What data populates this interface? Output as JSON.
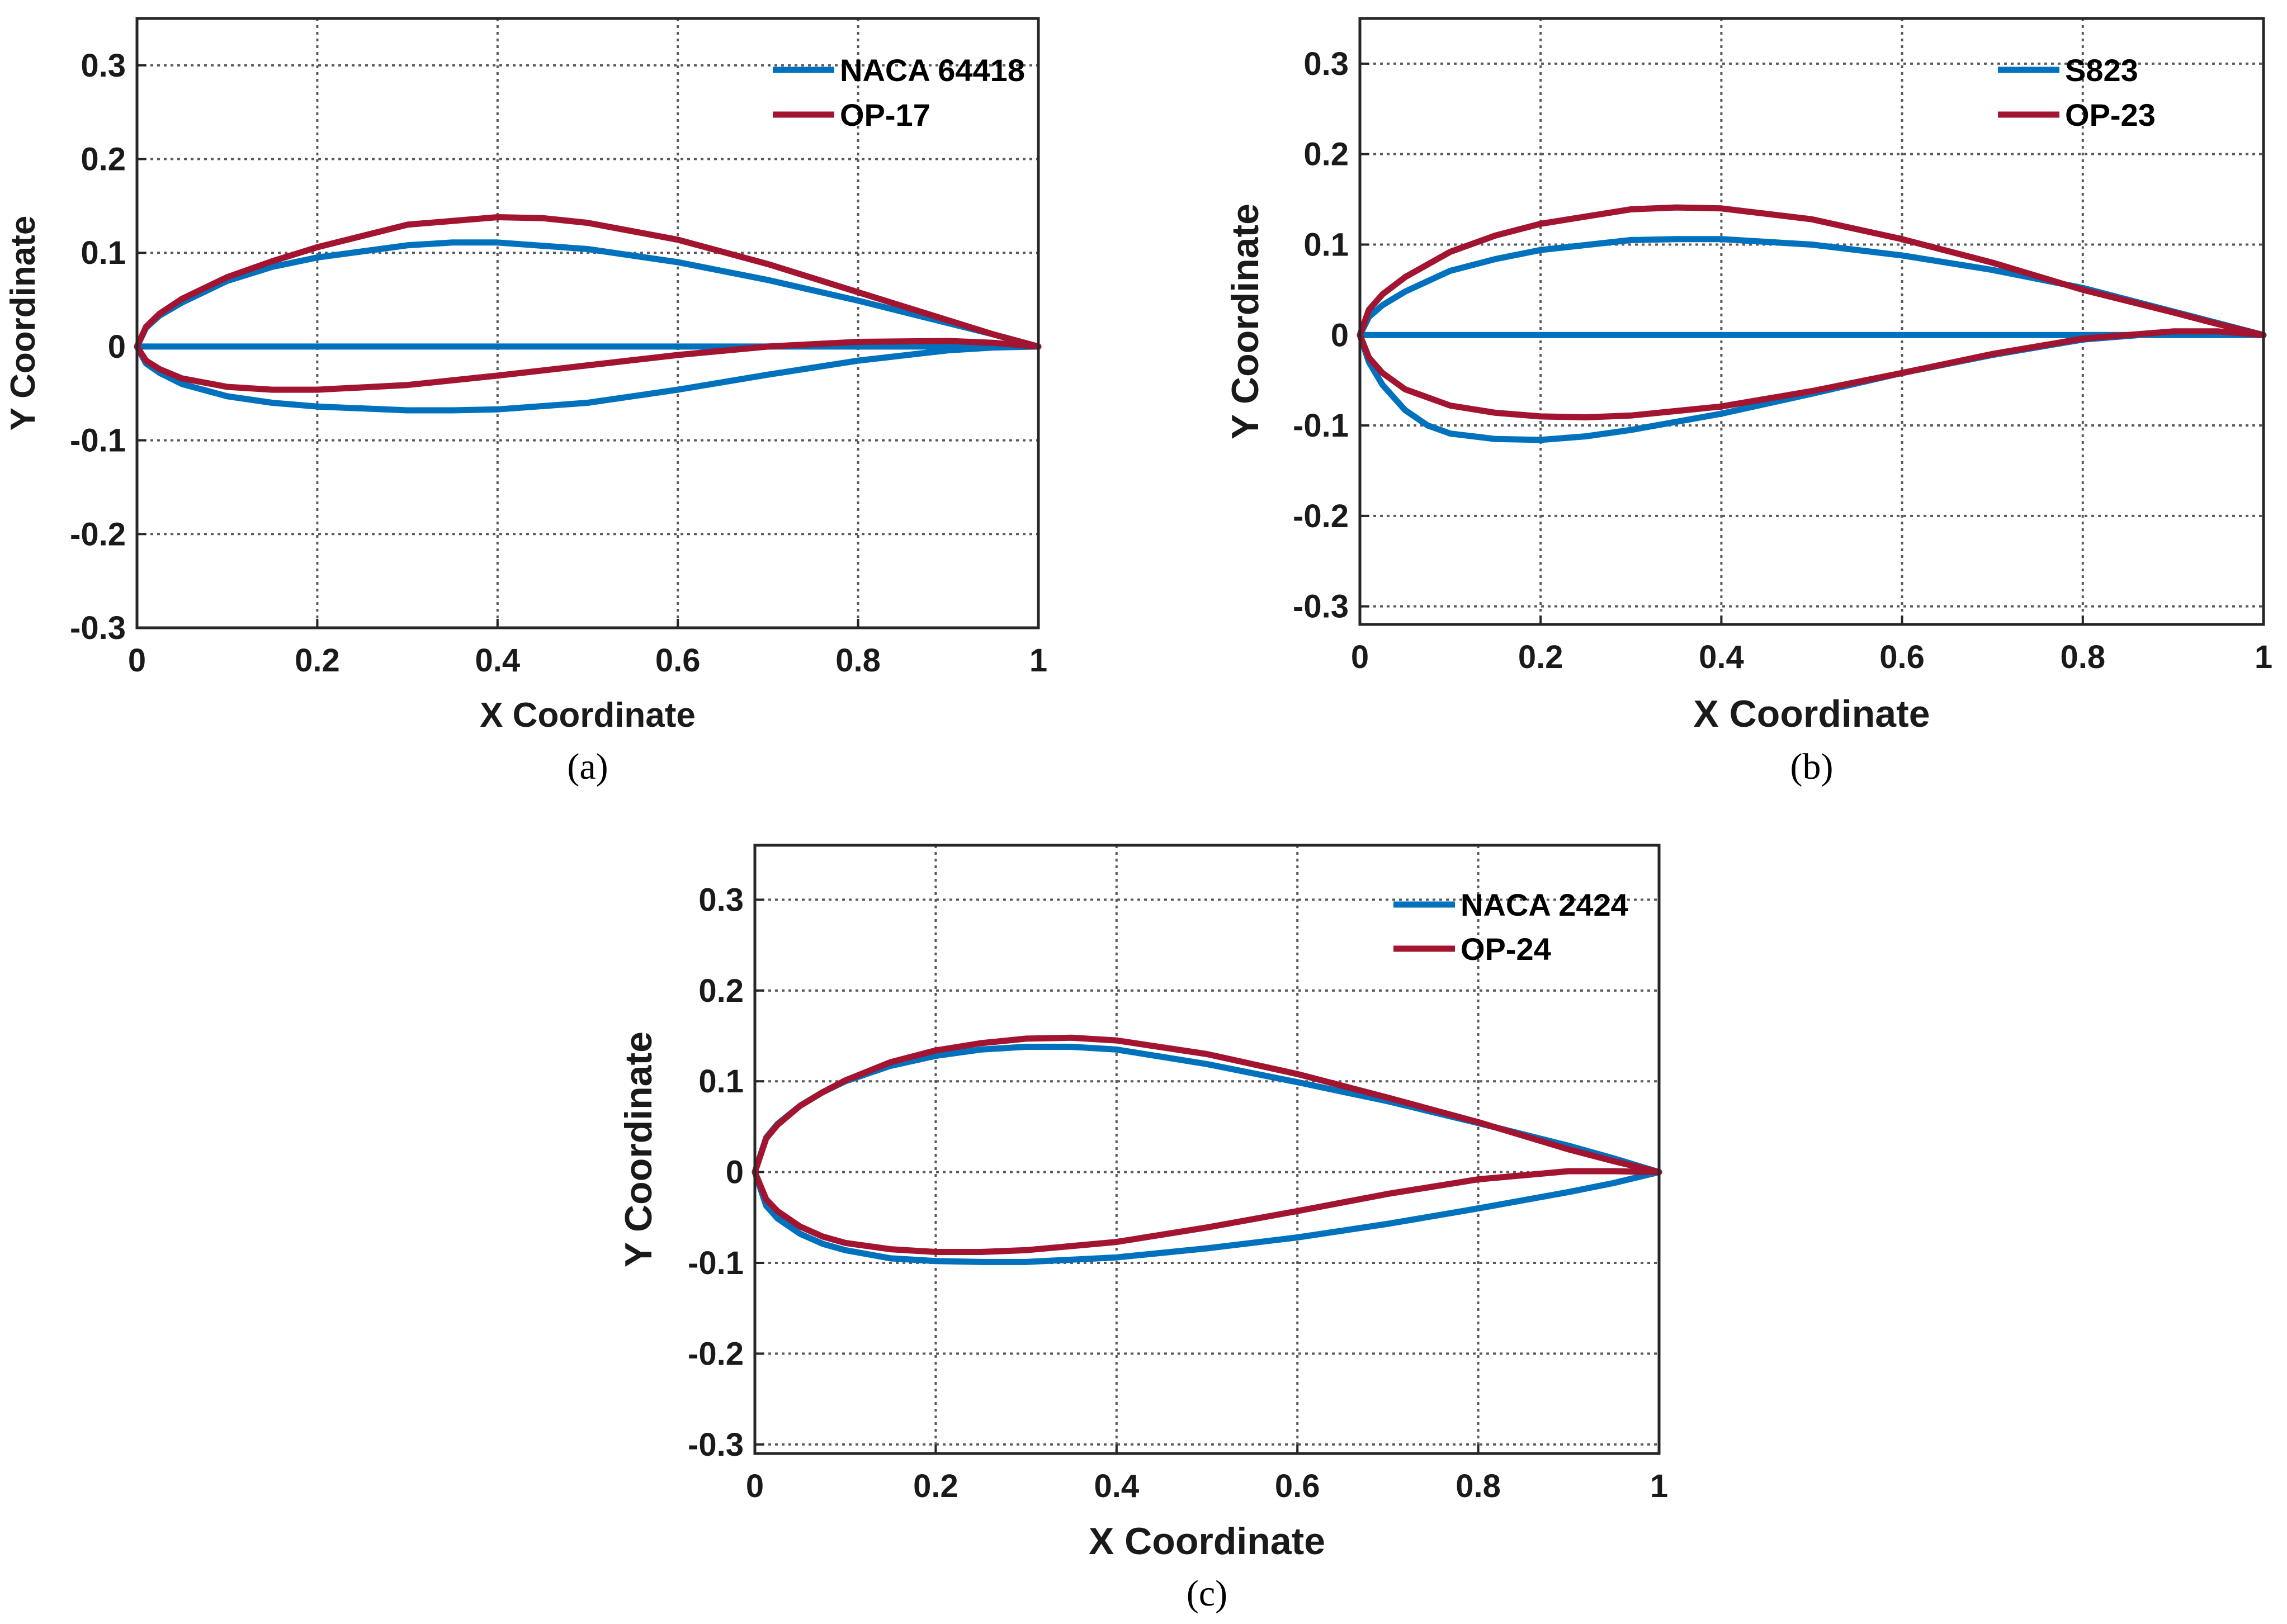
{
  "chart_data": [
    {
      "type": "line",
      "caption": "(a)",
      "xlabel": "X Coordinate",
      "ylabel": "Y Coordinate",
      "xlim": [
        0,
        1
      ],
      "ylim": [
        -0.3,
        0.35
      ],
      "xticks": [
        0,
        0.2,
        0.4,
        0.6,
        0.8,
        1
      ],
      "xtick_labels": [
        "0",
        "0.2",
        "0.4",
        "0.6",
        "0.8",
        "1"
      ],
      "yticks": [
        -0.3,
        -0.2,
        -0.1,
        0,
        0.1,
        0.2,
        0.3
      ],
      "ytick_labels": [
        "-0.3",
        "-0.2",
        "-0.1",
        "0",
        "0.1",
        "0.2",
        "0.3"
      ],
      "grid": true,
      "legend_position": "top-right",
      "series": [
        {
          "name": "NACA 64418",
          "color": "#0072BD",
          "x": [
            1.0,
            0.95,
            0.9,
            0.8,
            0.7,
            0.6,
            0.5,
            0.4,
            0.35,
            0.3,
            0.2,
            0.15,
            0.1,
            0.05,
            0.025,
            0.01,
            0.0,
            0.01,
            0.025,
            0.05,
            0.1,
            0.15,
            0.2,
            0.3,
            0.35,
            0.4,
            0.5,
            0.6,
            0.7,
            0.8,
            0.9,
            0.95,
            1.0,
            null,
            0.0,
            1.0
          ],
          "y": [
            0.0,
            0.013,
            0.025,
            0.049,
            0.071,
            0.09,
            0.104,
            0.111,
            0.111,
            0.108,
            0.095,
            0.085,
            0.07,
            0.047,
            0.033,
            0.02,
            0.0,
            -0.018,
            -0.028,
            -0.04,
            -0.053,
            -0.06,
            -0.064,
            -0.068,
            -0.068,
            -0.067,
            -0.06,
            -0.046,
            -0.03,
            -0.015,
            -0.004,
            -0.001,
            0.0,
            null,
            0.0,
            0.0
          ]
        },
        {
          "name": "OP-17",
          "color": "#A2142F",
          "x": [
            1.0,
            0.95,
            0.9,
            0.8,
            0.7,
            0.6,
            0.5,
            0.45,
            0.4,
            0.3,
            0.2,
            0.15,
            0.1,
            0.05,
            0.025,
            0.01,
            0.0,
            0.01,
            0.025,
            0.05,
            0.1,
            0.15,
            0.2,
            0.3,
            0.4,
            0.5,
            0.6,
            0.7,
            0.8,
            0.9,
            0.95,
            1.0
          ],
          "y": [
            0.0,
            0.013,
            0.028,
            0.058,
            0.088,
            0.114,
            0.132,
            0.137,
            0.138,
            0.13,
            0.106,
            0.091,
            0.074,
            0.051,
            0.035,
            0.021,
            0.0,
            -0.015,
            -0.024,
            -0.034,
            -0.043,
            -0.046,
            -0.046,
            -0.041,
            -0.031,
            -0.02,
            -0.009,
            0.0,
            0.005,
            0.006,
            0.004,
            0.0
          ]
        }
      ]
    },
    {
      "type": "line",
      "caption": "(b)",
      "xlabel": "X Coordinate",
      "ylabel": "Y Coordinate",
      "xlim": [
        0,
        1
      ],
      "ylim": [
        -0.32,
        0.35
      ],
      "xticks": [
        0,
        0.2,
        0.4,
        0.6,
        0.8,
        1
      ],
      "xtick_labels": [
        "0",
        "0.2",
        "0.4",
        "0.6",
        "0.8",
        "1"
      ],
      "yticks": [
        -0.3,
        -0.2,
        -0.1,
        0,
        0.1,
        0.2,
        0.3
      ],
      "ytick_labels": [
        "-0.3",
        "-0.2",
        "-0.1",
        "0",
        "0.1",
        "0.2",
        "0.3"
      ],
      "grid": true,
      "legend_position": "top-right",
      "series": [
        {
          "name": "S823",
          "color": "#0072BD",
          "x": [
            1.0,
            0.95,
            0.9,
            0.8,
            0.7,
            0.6,
            0.5,
            0.4,
            0.35,
            0.3,
            0.2,
            0.15,
            0.1,
            0.05,
            0.025,
            0.01,
            0.0,
            0.01,
            0.025,
            0.05,
            0.075,
            0.1,
            0.15,
            0.2,
            0.25,
            0.3,
            0.4,
            0.5,
            0.6,
            0.7,
            0.8,
            0.9,
            0.95,
            1.0,
            null,
            0.0,
            1.0
          ],
          "y": [
            0.0,
            0.013,
            0.026,
            0.052,
            0.072,
            0.088,
            0.1,
            0.106,
            0.106,
            0.105,
            0.094,
            0.084,
            0.071,
            0.048,
            0.033,
            0.02,
            0.0,
            -0.03,
            -0.055,
            -0.083,
            -0.1,
            -0.109,
            -0.115,
            -0.116,
            -0.112,
            -0.105,
            -0.087,
            -0.065,
            -0.042,
            -0.022,
            -0.005,
            0.003,
            0.003,
            0.0,
            null,
            0.0,
            0.0
          ]
        },
        {
          "name": "OP-23",
          "color": "#A2142F",
          "x": [
            1.0,
            0.95,
            0.9,
            0.8,
            0.7,
            0.6,
            0.5,
            0.4,
            0.35,
            0.3,
            0.2,
            0.15,
            0.1,
            0.05,
            0.025,
            0.01,
            0.0,
            0.01,
            0.025,
            0.05,
            0.1,
            0.15,
            0.2,
            0.25,
            0.3,
            0.4,
            0.5,
            0.6,
            0.7,
            0.8,
            0.9,
            0.95,
            1.0
          ],
          "y": [
            0.0,
            0.012,
            0.025,
            0.05,
            0.08,
            0.106,
            0.128,
            0.14,
            0.141,
            0.139,
            0.123,
            0.11,
            0.092,
            0.064,
            0.045,
            0.028,
            0.0,
            -0.025,
            -0.042,
            -0.06,
            -0.078,
            -0.086,
            -0.09,
            -0.091,
            -0.089,
            -0.079,
            -0.062,
            -0.042,
            -0.021,
            -0.004,
            0.004,
            0.004,
            0.0
          ]
        }
      ]
    },
    {
      "type": "line",
      "caption": "(c)",
      "xlabel": "X Coordinate",
      "ylabel": "Y Coordinate",
      "xlim": [
        0,
        1
      ],
      "ylim": [
        -0.31,
        0.36
      ],
      "xticks": [
        0,
        0.2,
        0.4,
        0.6,
        0.8,
        1
      ],
      "xtick_labels": [
        "0",
        "0.2",
        "0.4",
        "0.6",
        "0.8",
        "1"
      ],
      "yticks": [
        -0.3,
        -0.2,
        -0.1,
        0,
        0.1,
        0.2,
        0.3
      ],
      "ytick_labels": [
        "-0.3",
        "-0.2",
        "-0.1",
        "0",
        "0.1",
        "0.2",
        "0.3"
      ],
      "grid": true,
      "legend_position": "top-right",
      "series": [
        {
          "name": "NACA 2424",
          "color": "#0072BD",
          "x": [
            1.0,
            0.95,
            0.9,
            0.8,
            0.7,
            0.6,
            0.5,
            0.4,
            0.35,
            0.3,
            0.25,
            0.2,
            0.15,
            0.1,
            0.075,
            0.05,
            0.025,
            0.0125,
            0.0,
            0.0125,
            0.025,
            0.05,
            0.075,
            0.1,
            0.15,
            0.2,
            0.25,
            0.3,
            0.4,
            0.5,
            0.6,
            0.7,
            0.8,
            0.9,
            0.95,
            1.0
          ],
          "y": [
            0.0,
            0.015,
            0.029,
            0.054,
            0.078,
            0.099,
            0.119,
            0.135,
            0.138,
            0.138,
            0.135,
            0.128,
            0.117,
            0.1,
            0.088,
            0.073,
            0.053,
            0.038,
            0.0,
            -0.037,
            -0.051,
            -0.068,
            -0.079,
            -0.086,
            -0.095,
            -0.098,
            -0.099,
            -0.099,
            -0.094,
            -0.084,
            -0.072,
            -0.057,
            -0.04,
            -0.022,
            -0.012,
            0.0
          ]
        },
        {
          "name": "OP-24",
          "color": "#A2142F",
          "x": [
            1.0,
            0.95,
            0.9,
            0.8,
            0.7,
            0.6,
            0.5,
            0.4,
            0.35,
            0.3,
            0.25,
            0.2,
            0.15,
            0.1,
            0.075,
            0.05,
            0.025,
            0.0125,
            0.0,
            0.0125,
            0.025,
            0.05,
            0.075,
            0.1,
            0.15,
            0.2,
            0.25,
            0.3,
            0.4,
            0.5,
            0.6,
            0.7,
            0.8,
            0.9,
            0.95,
            1.0
          ],
          "y": [
            0.0,
            0.012,
            0.025,
            0.055,
            0.082,
            0.108,
            0.13,
            0.145,
            0.148,
            0.147,
            0.142,
            0.134,
            0.121,
            0.101,
            0.088,
            0.073,
            0.052,
            0.037,
            0.0,
            -0.03,
            -0.043,
            -0.06,
            -0.071,
            -0.078,
            -0.085,
            -0.088,
            -0.088,
            -0.086,
            -0.077,
            -0.061,
            -0.043,
            -0.024,
            -0.008,
            0.001,
            0.001,
            0.0
          ]
        }
      ]
    }
  ]
}
